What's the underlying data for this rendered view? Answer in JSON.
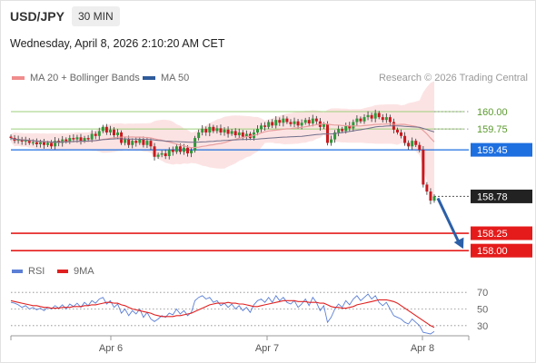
{
  "header": {
    "symbol": "USD/JPY",
    "timeframe": "30 MIN",
    "datetime": "Wednesday, April 8, 2026 2:10:20 AM CET"
  },
  "legend_price": [
    {
      "label": "MA 20 + Bollinger Bands",
      "color": "#f08c8c"
    },
    {
      "label": "MA 50",
      "color": "#2f5b9a"
    }
  ],
  "legend_rsi": [
    {
      "label": "RSI",
      "color": "#5b7fd6"
    },
    {
      "label": "9MA",
      "color": "#e02020"
    }
  ],
  "credit": "Research © 2026 Trading Central",
  "colors": {
    "up": "#2e9a3a",
    "down": "#c8191e",
    "pivot": "#1e6fe0",
    "support": "#e51b1b",
    "resistance": "#9ccf7a",
    "current": "#222222",
    "bb_fill": "#fbd9d9",
    "ma20": "#e8a0a0",
    "ma50": "#6e6e8a",
    "arrow": "#2b5fa8"
  },
  "chart_data": [
    {
      "type": "candlestick",
      "title": "",
      "x_ticks": [
        "Apr 6",
        "Apr 7",
        "Apr 8"
      ],
      "ylim": [
        157.95,
        160.3
      ],
      "levels": [
        {
          "value": 160.0,
          "label": "160.00",
          "kind": "resistance"
        },
        {
          "value": 159.75,
          "label": "159.75",
          "kind": "resistance"
        },
        {
          "value": 159.45,
          "label": "159.45",
          "kind": "pivot"
        },
        {
          "value": 158.78,
          "label": "158.78",
          "kind": "current"
        },
        {
          "value": 158.25,
          "label": "158.25",
          "kind": "support"
        },
        {
          "value": 158.0,
          "label": "158.00",
          "kind": "support"
        }
      ],
      "close_series": [
        159.62,
        159.58,
        159.6,
        159.57,
        159.59,
        159.55,
        159.56,
        159.53,
        159.56,
        159.52,
        159.55,
        159.5,
        159.58,
        159.55,
        159.6,
        159.57,
        159.62,
        159.6,
        159.63,
        159.58,
        159.62,
        159.6,
        159.68,
        159.65,
        159.72,
        159.78,
        159.7,
        159.74,
        159.66,
        159.7,
        159.55,
        159.6,
        159.52,
        159.58,
        159.55,
        159.6,
        159.52,
        159.58,
        159.5,
        159.35,
        159.38,
        159.4,
        159.36,
        159.45,
        159.42,
        159.5,
        159.42,
        159.48,
        159.4,
        159.44,
        159.62,
        159.7,
        159.75,
        159.7,
        159.78,
        159.72,
        159.76,
        159.7,
        159.74,
        159.68,
        159.72,
        159.66,
        159.7,
        159.64,
        159.68,
        159.62,
        159.7,
        159.75,
        159.8,
        159.78,
        159.85,
        159.8,
        159.88,
        159.84,
        159.9,
        159.85,
        159.82,
        159.86,
        159.8,
        159.84,
        159.88,
        159.83,
        159.9,
        159.86,
        159.78,
        159.82,
        159.55,
        159.6,
        159.7,
        159.75,
        159.72,
        159.8,
        159.76,
        159.85,
        159.9,
        159.86,
        159.92,
        159.95,
        159.9,
        159.98,
        159.92,
        159.88,
        159.92,
        159.85,
        159.74,
        159.7,
        159.65,
        159.55,
        159.5,
        159.58,
        159.52,
        159.45,
        158.95,
        158.85,
        158.72,
        158.78
      ],
      "rsi": {
        "ticks": [
          70,
          50,
          30
        ],
        "ylim": [
          20,
          80
        ],
        "rsi_series": [
          58,
          57,
          55,
          52,
          54,
          50,
          52,
          49,
          51,
          48,
          52,
          50,
          54,
          51,
          55,
          50,
          56,
          53,
          57,
          52,
          58,
          54,
          60,
          57,
          62,
          64,
          56,
          60,
          52,
          56,
          45,
          50,
          42,
          48,
          44,
          50,
          40,
          46,
          38,
          35,
          38,
          42,
          40,
          45,
          43,
          50,
          44,
          48,
          42,
          46,
          60,
          64,
          66,
          62,
          64,
          58,
          60,
          54,
          57,
          52,
          56,
          50,
          54,
          48,
          52,
          46,
          55,
          60,
          62,
          58,
          64,
          58,
          66,
          60,
          64,
          58,
          56,
          60,
          52,
          56,
          62,
          54,
          64,
          58,
          48,
          54,
          34,
          40,
          50,
          56,
          52,
          60,
          55,
          62,
          66,
          60,
          64,
          68,
          62,
          66,
          58,
          54,
          58,
          50,
          42,
          40,
          38,
          34,
          32,
          38,
          34,
          30,
          22,
          21,
          20,
          23
        ],
        "ma9_series": [
          60,
          59,
          58,
          57,
          56,
          55,
          54,
          54,
          53,
          52,
          52,
          51,
          51,
          51,
          52,
          52,
          52,
          53,
          53,
          53,
          54,
          54,
          55,
          55,
          56,
          57,
          58,
          58,
          57,
          57,
          55,
          54,
          52,
          50,
          49,
          48,
          47,
          46,
          45,
          43,
          42,
          41,
          41,
          41,
          41,
          42,
          42,
          43,
          44,
          45,
          47,
          49,
          51,
          53,
          55,
          56,
          57,
          57,
          57,
          58,
          57,
          57,
          56,
          56,
          55,
          54,
          53,
          53,
          54,
          55,
          56,
          57,
          58,
          59,
          60,
          60,
          60,
          60,
          59,
          59,
          59,
          58,
          58,
          58,
          57,
          57,
          55,
          53,
          52,
          52,
          51,
          51,
          52,
          53,
          55,
          56,
          57,
          58,
          59,
          60,
          61,
          61,
          61,
          60,
          59,
          57,
          54,
          51,
          48,
          45,
          42,
          39,
          36,
          33,
          30,
          28
        ]
      }
    }
  ]
}
